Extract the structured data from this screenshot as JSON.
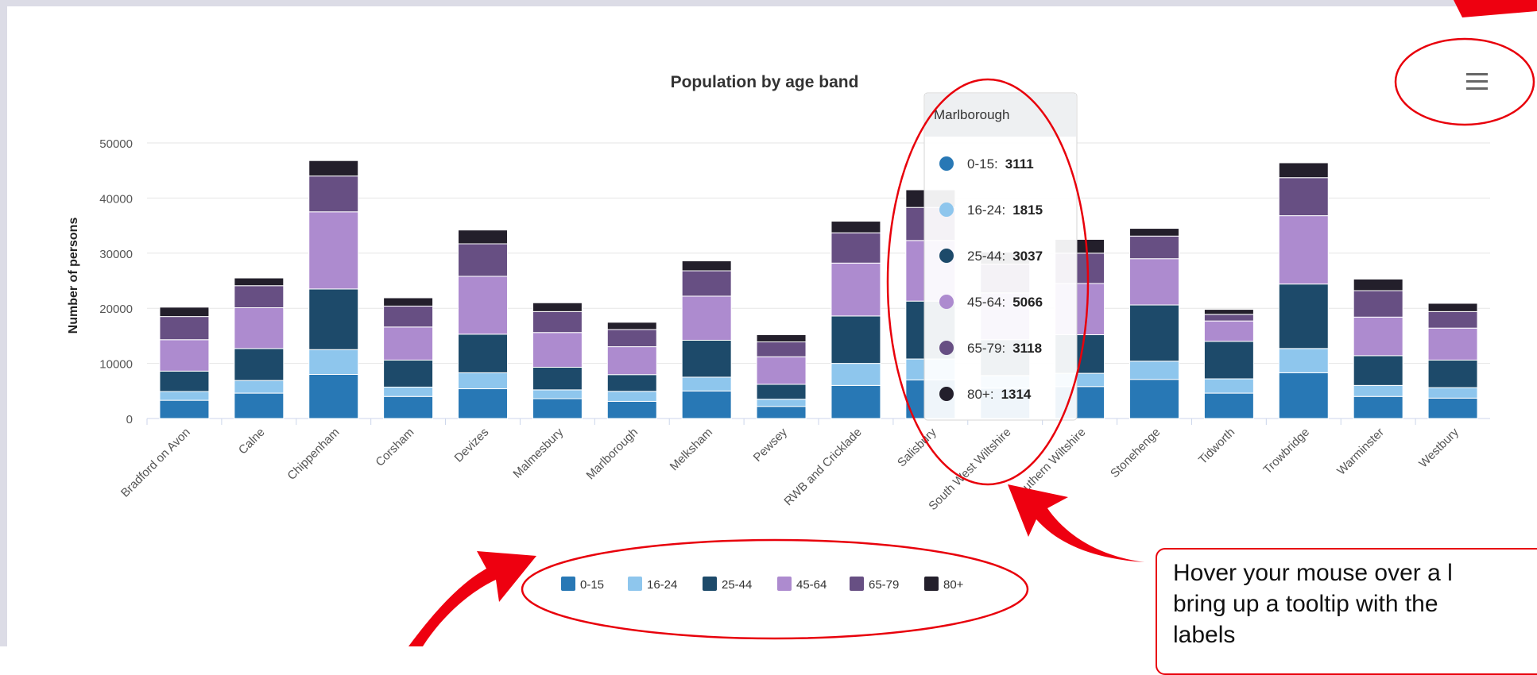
{
  "chart_data": {
    "type": "bar",
    "stacked": true,
    "title": "Population by age band",
    "ylabel": "Number of persons",
    "xlabel": "",
    "ylim": [
      0,
      50000
    ],
    "yticks": [
      0,
      10000,
      20000,
      30000,
      40000,
      50000
    ],
    "grid": true,
    "legend_position": "bottom-center",
    "categories": [
      "Bradford on Avon",
      "Calne",
      "Chippenham",
      "Corsham",
      "Devizes",
      "Malmesbury",
      "Marlborough",
      "Melksham",
      "Pewsey",
      "RWB and Cricklade",
      "Salisbury",
      "South West Wiltshire",
      "Southern Wiltshire",
      "Stonehenge",
      "Tidworth",
      "Trowbridge",
      "Warminster",
      "Westbury"
    ],
    "series": [
      {
        "name": "0-15",
        "color": "#2878b5",
        "values": [
          3300,
          4600,
          8000,
          4000,
          5400,
          3600,
          3111,
          5000,
          2200,
          6000,
          7000,
          5500,
          5800,
          7100,
          4600,
          8300,
          4000,
          3700
        ]
      },
      {
        "name": "16-24",
        "color": "#8ec6ed",
        "values": [
          1600,
          2300,
          4500,
          1700,
          2900,
          1600,
          1815,
          2500,
          1300,
          4000,
          3800,
          2300,
          2400,
          3300,
          2600,
          4400,
          2000,
          1900
        ]
      },
      {
        "name": "25-44",
        "color": "#1d4a6a",
        "values": [
          3700,
          5800,
          11000,
          4900,
          7000,
          4100,
          3037,
          6700,
          2700,
          8600,
          10500,
          6500,
          7000,
          10200,
          6800,
          11700,
          5400,
          5000
        ]
      },
      {
        "name": "45-64",
        "color": "#ad8bcf",
        "values": [
          5700,
          7400,
          14000,
          6000,
          10500,
          6300,
          5066,
          8000,
          5000,
          9600,
          11000,
          8500,
          9300,
          8400,
          3700,
          12400,
          7000,
          5800
        ]
      },
      {
        "name": "65-79",
        "color": "#674f83",
        "values": [
          4200,
          4000,
          6500,
          3800,
          5900,
          3800,
          3118,
          4600,
          2700,
          5500,
          6000,
          5200,
          5500,
          4100,
          1200,
          6900,
          4800,
          3000
        ]
      },
      {
        "name": "80+",
        "color": "#231f2b",
        "values": [
          1700,
          1400,
          2800,
          1500,
          2500,
          1600,
          1314,
          1800,
          1300,
          2100,
          3200,
          2200,
          2500,
          1400,
          900,
          2700,
          2100,
          1500
        ]
      }
    ],
    "tooltip": {
      "category": "Marlborough",
      "rows": [
        {
          "label": "0-15:",
          "value": "3111",
          "color": "#2878b5"
        },
        {
          "label": "16-24:",
          "value": "1815",
          "color": "#8ec6ed"
        },
        {
          "label": "25-44:",
          "value": "3037",
          "color": "#1d4a6a"
        },
        {
          "label": "45-64:",
          "value": "5066",
          "color": "#ad8bcf"
        },
        {
          "label": "65-79:",
          "value": "3118",
          "color": "#674f83"
        },
        {
          "label": "80+:",
          "value": "1314",
          "color": "#231f2b"
        }
      ]
    }
  },
  "menu": {
    "icon": "hamburger-menu-icon"
  },
  "annotation": {
    "line1": "Hover your mouse over a l",
    "line2": "bring up a tooltip with the",
    "line3": "labels"
  },
  "colors": {
    "highlight": "#e8000b",
    "frame": "#dcdce6"
  }
}
